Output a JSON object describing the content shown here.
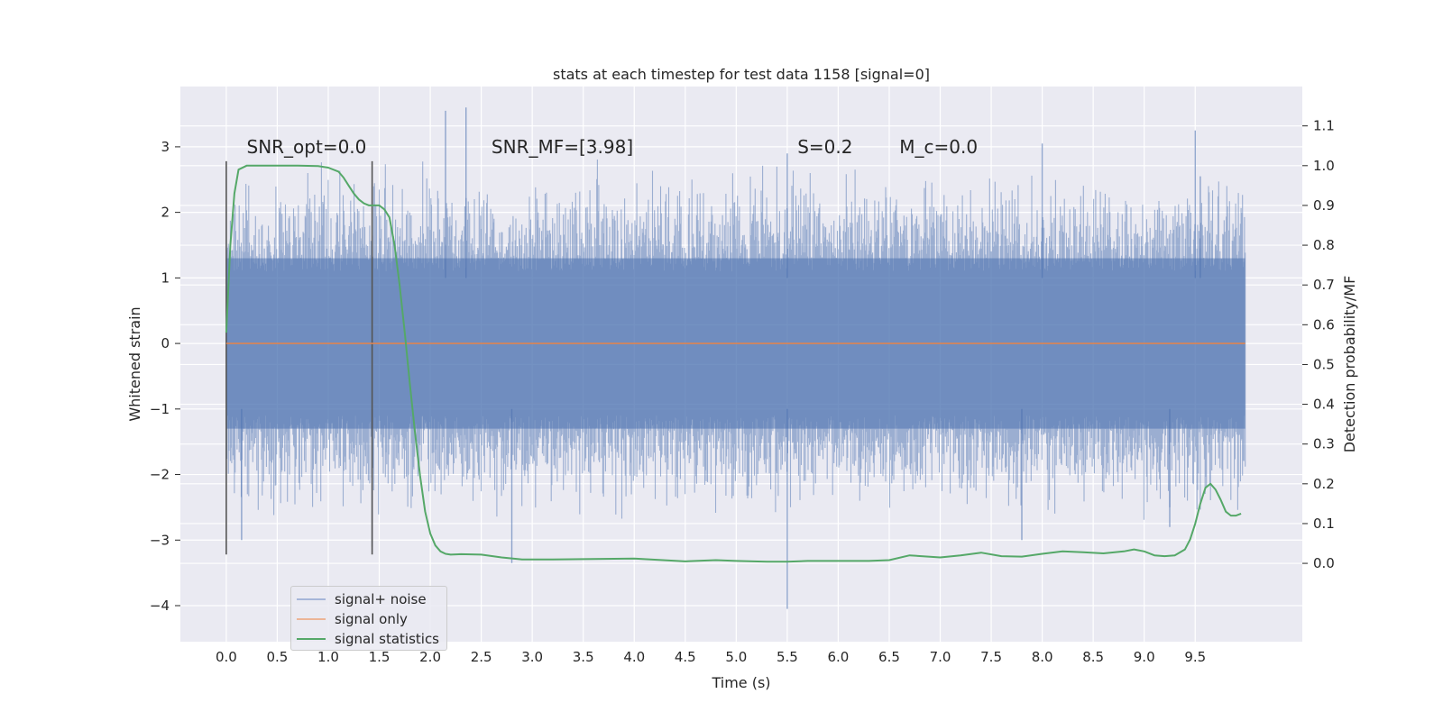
{
  "chart_data": {
    "type": "line",
    "title": "stats at each timestep for test data 1158 [signal=0]",
    "xlabel": "Time (s)",
    "ylabel": "Whitened strain",
    "y2label": "Detection probability/MF",
    "xlim": [
      -0.45,
      10.55
    ],
    "ylim": [
      -4.55,
      3.92
    ],
    "y2lim": [
      -0.197,
      1.199
    ],
    "x_ticks": [
      "0.0",
      "0.5",
      "1.0",
      "1.5",
      "2.0",
      "2.5",
      "3.0",
      "3.5",
      "4.0",
      "4.5",
      "5.0",
      "5.5",
      "6.0",
      "6.5",
      "7.0",
      "7.5",
      "8.0",
      "8.5",
      "9.0",
      "9.5"
    ],
    "y_ticks": [
      "−4",
      "−3",
      "−2",
      "−1",
      "0",
      "1",
      "2",
      "3"
    ],
    "y2_ticks": [
      "0.0",
      "0.1",
      "0.2",
      "0.3",
      "0.4",
      "0.5",
      "0.6",
      "0.7",
      "0.8",
      "0.9",
      "1.0",
      "1.1"
    ],
    "grid": true,
    "legend_placement": "lower left",
    "series": [
      {
        "name": "signal+ noise",
        "color": "#4c72b0",
        "axis": "left",
        "style": "dense noise band",
        "x_range": [
          0.0,
          9.99
        ],
        "typical_range": [
          -1.3,
          1.3
        ],
        "peaks": [
          {
            "x": 2.15,
            "y": 3.55
          },
          {
            "x": 2.35,
            "y": 3.6
          },
          {
            "x": 8.0,
            "y": 3.05
          },
          {
            "x": 5.5,
            "y": 2.9
          },
          {
            "x": 9.5,
            "y": 3.25
          },
          {
            "x": 9.55,
            "y": 2.55
          }
        ],
        "troughs": [
          {
            "x": 5.5,
            "y": -4.05
          },
          {
            "x": 2.8,
            "y": -3.35
          },
          {
            "x": 1.43,
            "y": -3.1
          },
          {
            "x": 0.15,
            "y": -3.0
          },
          {
            "x": 7.8,
            "y": -3.0
          },
          {
            "x": 9.25,
            "y": -2.8
          }
        ]
      },
      {
        "name": "signal only",
        "color": "#dd8452",
        "axis": "left",
        "x": [
          0.0,
          9.99
        ],
        "y": [
          0.0,
          0.0
        ]
      },
      {
        "name": "signal statistics",
        "color": "#55a868",
        "axis": "right",
        "x": [
          0.0,
          0.04,
          0.08,
          0.12,
          0.2,
          0.3,
          0.5,
          0.7,
          0.9,
          1.0,
          1.1,
          1.15,
          1.2,
          1.25,
          1.3,
          1.35,
          1.4,
          1.45,
          1.5,
          1.55,
          1.6,
          1.65,
          1.7,
          1.75,
          1.8,
          1.85,
          1.9,
          1.95,
          2.0,
          2.05,
          2.1,
          2.15,
          2.2,
          2.3,
          2.5,
          2.7,
          2.9,
          3.2,
          3.6,
          4.0,
          4.5,
          4.8,
          5.0,
          5.3,
          5.5,
          5.7,
          6.0,
          6.3,
          6.5,
          6.7,
          7.0,
          7.2,
          7.4,
          7.6,
          7.8,
          8.0,
          8.2,
          8.4,
          8.6,
          8.8,
          8.9,
          9.0,
          9.1,
          9.2,
          9.3,
          9.4,
          9.45,
          9.5,
          9.55,
          9.6,
          9.65,
          9.7,
          9.75,
          9.8,
          9.85,
          9.9,
          9.95
        ],
        "y": [
          0.58,
          0.8,
          0.93,
          0.99,
          1.0,
          1.0,
          1.0,
          1.0,
          0.999,
          0.995,
          0.985,
          0.97,
          0.95,
          0.93,
          0.915,
          0.905,
          0.9,
          0.9,
          0.9,
          0.89,
          0.87,
          0.8,
          0.7,
          0.58,
          0.45,
          0.33,
          0.22,
          0.13,
          0.075,
          0.045,
          0.03,
          0.024,
          0.022,
          0.023,
          0.022,
          0.015,
          0.01,
          0.01,
          0.011,
          0.012,
          0.005,
          0.008,
          0.006,
          0.004,
          0.004,
          0.006,
          0.006,
          0.006,
          0.008,
          0.02,
          0.015,
          0.02,
          0.027,
          0.018,
          0.017,
          0.024,
          0.03,
          0.028,
          0.025,
          0.03,
          0.035,
          0.03,
          0.02,
          0.018,
          0.02,
          0.035,
          0.06,
          0.1,
          0.15,
          0.19,
          0.2,
          0.185,
          0.16,
          0.13,
          0.12,
          0.12,
          0.125
        ]
      }
    ],
    "vertical_markers": [
      0.0,
      1.43
    ],
    "annotations": [
      {
        "text": "SNR_opt=0.0",
        "x": 0.2,
        "y": 2.9
      },
      {
        "text": "SNR_MF=[3.98]",
        "x": 2.6,
        "y": 2.9
      },
      {
        "text": "S=0.2",
        "x": 5.6,
        "y": 2.9
      },
      {
        "text": "M_c=0.0",
        "x": 6.6,
        "y": 2.9
      }
    ]
  }
}
